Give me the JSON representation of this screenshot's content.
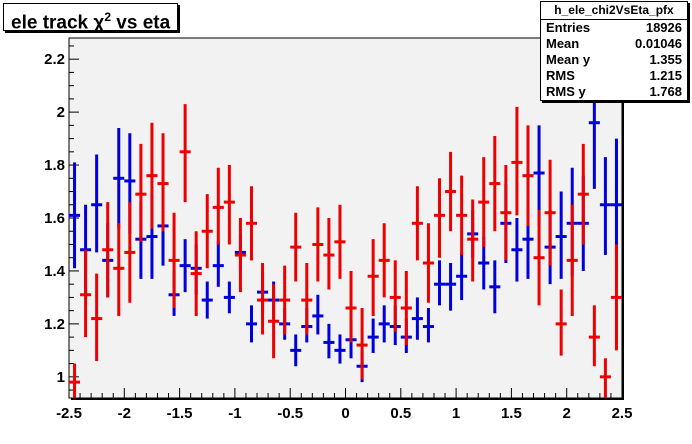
{
  "title": {
    "main": "ele track χ",
    "sup": "2",
    "rest": " vs eta"
  },
  "stats": {
    "name": "h_ele_chi2VsEta_pfx",
    "rows": [
      {
        "label": "Entries",
        "value": "18926"
      },
      {
        "label": "Mean",
        "value": "0.01046"
      },
      {
        "label": "Mean y",
        "value": "1.355"
      },
      {
        "label": "RMS",
        "value": "1.215"
      },
      {
        "label": "RMS y",
        "value": "1.768"
      }
    ]
  },
  "colors": {
    "frame_bg": "#f2f2f2",
    "blue": "#0000dd",
    "red": "#ee0000"
  },
  "chart_data": {
    "type": "scatter",
    "title": "ele track χ2 vs eta",
    "xlim": [
      -2.5,
      2.5
    ],
    "ylim": [
      0.92,
      2.28
    ],
    "x_ticks": [
      "-2.5",
      "-2",
      "-1.5",
      "-1",
      "-0.5",
      "0",
      "0.5",
      "1",
      "1.5",
      "2",
      "2.5"
    ],
    "y_ticks": [
      "1",
      "1.2",
      "1.4",
      "1.6",
      "1.8",
      "2",
      "2.2"
    ],
    "series": [
      {
        "color": "blue",
        "bin_width": 0.1,
        "points": [
          {
            "x": -2.45,
            "y": 1.61,
            "lo": 1.41,
            "hi": 1.81
          },
          {
            "x": -2.35,
            "y": 1.48,
            "lo": 1.31,
            "hi": 1.65
          },
          {
            "x": -2.25,
            "y": 1.65,
            "lo": 1.47,
            "hi": 1.84
          },
          {
            "x": -2.15,
            "y": 1.44,
            "lo": 1.3,
            "hi": 1.58
          },
          {
            "x": -2.05,
            "y": 1.75,
            "lo": 1.56,
            "hi": 1.94
          },
          {
            "x": -1.95,
            "y": 1.74,
            "lo": 1.54,
            "hi": 1.92
          },
          {
            "x": -1.85,
            "y": 1.52,
            "lo": 1.37,
            "hi": 1.66
          },
          {
            "x": -1.75,
            "y": 1.53,
            "lo": 1.37,
            "hi": 1.69
          },
          {
            "x": -1.65,
            "y": 1.57,
            "lo": 1.42,
            "hi": 1.72
          },
          {
            "x": -1.55,
            "y": 1.31,
            "lo": 1.23,
            "hi": 1.4
          },
          {
            "x": -1.45,
            "y": 1.42,
            "lo": 1.32,
            "hi": 1.52
          },
          {
            "x": -1.35,
            "y": 1.41,
            "lo": 1.31,
            "hi": 1.5
          },
          {
            "x": -1.25,
            "y": 1.29,
            "lo": 1.22,
            "hi": 1.36
          },
          {
            "x": -1.15,
            "y": 1.42,
            "lo": 1.34,
            "hi": 1.51
          },
          {
            "x": -1.05,
            "y": 1.3,
            "lo": 1.24,
            "hi": 1.36
          },
          {
            "x": -0.95,
            "y": 1.47,
            "lo": 1.4,
            "hi": 1.54
          },
          {
            "x": -0.85,
            "y": 1.2,
            "lo": 1.13,
            "hi": 1.27
          },
          {
            "x": -0.75,
            "y": 1.32,
            "lo": 1.24,
            "hi": 1.4
          },
          {
            "x": -0.65,
            "y": 1.29,
            "lo": 1.22,
            "hi": 1.36
          },
          {
            "x": -0.55,
            "y": 1.2,
            "lo": 1.14,
            "hi": 1.26
          },
          {
            "x": -0.45,
            "y": 1.1,
            "lo": 1.04,
            "hi": 1.16
          },
          {
            "x": -0.35,
            "y": 1.19,
            "lo": 1.13,
            "hi": 1.26
          },
          {
            "x": -0.25,
            "y": 1.23,
            "lo": 1.16,
            "hi": 1.31
          },
          {
            "x": -0.15,
            "y": 1.13,
            "lo": 1.07,
            "hi": 1.2
          },
          {
            "x": -0.05,
            "y": 1.1,
            "lo": 1.05,
            "hi": 1.16
          },
          {
            "x": 0.05,
            "y": 1.14,
            "lo": 1.07,
            "hi": 1.21
          },
          {
            "x": 0.15,
            "y": 1.04,
            "lo": 0.98,
            "hi": 1.1
          },
          {
            "x": 0.25,
            "y": 1.15,
            "lo": 1.09,
            "hi": 1.22
          },
          {
            "x": 0.35,
            "y": 1.2,
            "lo": 1.13,
            "hi": 1.27
          },
          {
            "x": 0.45,
            "y": 1.19,
            "lo": 1.12,
            "hi": 1.27
          },
          {
            "x": 0.55,
            "y": 1.15,
            "lo": 1.09,
            "hi": 1.22
          },
          {
            "x": 0.65,
            "y": 1.22,
            "lo": 1.14,
            "hi": 1.3
          },
          {
            "x": 0.75,
            "y": 1.19,
            "lo": 1.13,
            "hi": 1.26
          },
          {
            "x": 0.85,
            "y": 1.35,
            "lo": 1.27,
            "hi": 1.44
          },
          {
            "x": 0.95,
            "y": 1.35,
            "lo": 1.25,
            "hi": 1.43
          },
          {
            "x": 1.05,
            "y": 1.38,
            "lo": 1.29,
            "hi": 1.47
          },
          {
            "x": 1.15,
            "y": 1.54,
            "lo": 1.45,
            "hi": 1.63
          },
          {
            "x": 1.25,
            "y": 1.43,
            "lo": 1.33,
            "hi": 1.53
          },
          {
            "x": 1.35,
            "y": 1.34,
            "lo": 1.24,
            "hi": 1.44
          },
          {
            "x": 1.45,
            "y": 1.58,
            "lo": 1.43,
            "hi": 1.73
          },
          {
            "x": 1.55,
            "y": 1.48,
            "lo": 1.36,
            "hi": 1.6
          },
          {
            "x": 1.65,
            "y": 1.52,
            "lo": 1.37,
            "hi": 1.67
          },
          {
            "x": 1.75,
            "y": 1.77,
            "lo": 1.57,
            "hi": 1.95
          },
          {
            "x": 1.85,
            "y": 1.49,
            "lo": 1.35,
            "hi": 1.63
          },
          {
            "x": 1.95,
            "y": 1.53,
            "lo": 1.37,
            "hi": 1.7
          },
          {
            "x": 2.05,
            "y": 1.58,
            "lo": 1.38,
            "hi": 1.79
          },
          {
            "x": 2.15,
            "y": 1.58,
            "lo": 1.4,
            "hi": 1.76
          },
          {
            "x": 2.25,
            "y": 1.96,
            "lo": 1.71,
            "hi": 2.2
          },
          {
            "x": 2.35,
            "y": 1.65,
            "lo": 1.46,
            "hi": 1.83
          },
          {
            "x": 2.45,
            "y": 1.65,
            "lo": 1.4,
            "hi": 1.9
          }
        ]
      },
      {
        "color": "red",
        "bin_width": 0.1,
        "points": [
          {
            "x": -2.45,
            "y": 0.98,
            "lo": 0.92,
            "hi": 1.05
          },
          {
            "x": -2.35,
            "y": 1.31,
            "lo": 1.15,
            "hi": 1.48
          },
          {
            "x": -2.25,
            "y": 1.22,
            "lo": 1.06,
            "hi": 1.39
          },
          {
            "x": -2.15,
            "y": 1.48,
            "lo": 1.3,
            "hi": 1.66
          },
          {
            "x": -2.05,
            "y": 1.41,
            "lo": 1.23,
            "hi": 1.58
          },
          {
            "x": -1.95,
            "y": 1.47,
            "lo": 1.28,
            "hi": 1.66
          },
          {
            "x": -1.85,
            "y": 1.69,
            "lo": 1.51,
            "hi": 1.88
          },
          {
            "x": -1.75,
            "y": 1.76,
            "lo": 1.56,
            "hi": 1.96
          },
          {
            "x": -1.65,
            "y": 1.73,
            "lo": 1.55,
            "hi": 1.92
          },
          {
            "x": -1.55,
            "y": 1.44,
            "lo": 1.26,
            "hi": 1.62
          },
          {
            "x": -1.45,
            "y": 1.85,
            "lo": 1.66,
            "hi": 2.03
          },
          {
            "x": -1.35,
            "y": 1.39,
            "lo": 1.23,
            "hi": 1.55
          },
          {
            "x": -1.25,
            "y": 1.55,
            "lo": 1.41,
            "hi": 1.69
          },
          {
            "x": -1.15,
            "y": 1.64,
            "lo": 1.5,
            "hi": 1.79
          },
          {
            "x": -1.05,
            "y": 1.66,
            "lo": 1.5,
            "hi": 1.8
          },
          {
            "x": -0.95,
            "y": 1.46,
            "lo": 1.32,
            "hi": 1.6
          },
          {
            "x": -0.85,
            "y": 1.58,
            "lo": 1.44,
            "hi": 1.72
          },
          {
            "x": -0.75,
            "y": 1.29,
            "lo": 1.16,
            "hi": 1.43
          },
          {
            "x": -0.65,
            "y": 1.21,
            "lo": 1.07,
            "hi": 1.35
          },
          {
            "x": -0.55,
            "y": 1.29,
            "lo": 1.16,
            "hi": 1.42
          },
          {
            "x": -0.45,
            "y": 1.49,
            "lo": 1.36,
            "hi": 1.62
          },
          {
            "x": -0.35,
            "y": 1.29,
            "lo": 1.16,
            "hi": 1.43
          },
          {
            "x": -0.25,
            "y": 1.5,
            "lo": 1.36,
            "hi": 1.64
          },
          {
            "x": -0.15,
            "y": 1.46,
            "lo": 1.33,
            "hi": 1.6
          },
          {
            "x": -0.05,
            "y": 1.51,
            "lo": 1.37,
            "hi": 1.65
          },
          {
            "x": 0.05,
            "y": 1.26,
            "lo": 1.13,
            "hi": 1.4
          },
          {
            "x": 0.15,
            "y": 1.12,
            "lo": 0.99,
            "hi": 1.26
          },
          {
            "x": 0.25,
            "y": 1.38,
            "lo": 1.23,
            "hi": 1.52
          },
          {
            "x": 0.35,
            "y": 1.44,
            "lo": 1.3,
            "hi": 1.58
          },
          {
            "x": 0.45,
            "y": 1.3,
            "lo": 1.17,
            "hi": 1.44
          },
          {
            "x": 0.55,
            "y": 1.26,
            "lo": 1.12,
            "hi": 1.4
          },
          {
            "x": 0.65,
            "y": 1.58,
            "lo": 1.44,
            "hi": 1.72
          },
          {
            "x": 0.75,
            "y": 1.43,
            "lo": 1.28,
            "hi": 1.58
          },
          {
            "x": 0.85,
            "y": 1.61,
            "lo": 1.45,
            "hi": 1.75
          },
          {
            "x": 0.95,
            "y": 1.7,
            "lo": 1.55,
            "hi": 1.85
          },
          {
            "x": 1.05,
            "y": 1.61,
            "lo": 1.46,
            "hi": 1.76
          },
          {
            "x": 1.15,
            "y": 1.52,
            "lo": 1.36,
            "hi": 1.67
          },
          {
            "x": 1.25,
            "y": 1.66,
            "lo": 1.49,
            "hi": 1.83
          },
          {
            "x": 1.35,
            "y": 1.73,
            "lo": 1.55,
            "hi": 1.91
          },
          {
            "x": 1.45,
            "y": 1.62,
            "lo": 1.44,
            "hi": 1.8
          },
          {
            "x": 1.55,
            "y": 1.81,
            "lo": 1.61,
            "hi": 2.02
          },
          {
            "x": 1.65,
            "y": 1.76,
            "lo": 1.57,
            "hi": 1.95
          },
          {
            "x": 1.75,
            "y": 1.45,
            "lo": 1.27,
            "hi": 1.63
          },
          {
            "x": 1.85,
            "y": 1.62,
            "lo": 1.42,
            "hi": 1.82
          },
          {
            "x": 1.95,
            "y": 1.2,
            "lo": 1.08,
            "hi": 1.33
          },
          {
            "x": 2.05,
            "y": 1.44,
            "lo": 1.23,
            "hi": 1.65
          },
          {
            "x": 2.15,
            "y": 1.69,
            "lo": 1.5,
            "hi": 1.88
          },
          {
            "x": 2.25,
            "y": 1.15,
            "lo": 1.04,
            "hi": 1.27
          },
          {
            "x": 2.35,
            "y": 1.0,
            "lo": 0.92,
            "hi": 1.07
          },
          {
            "x": 2.45,
            "y": 1.3,
            "lo": 1.1,
            "hi": 1.5
          }
        ]
      }
    ]
  }
}
